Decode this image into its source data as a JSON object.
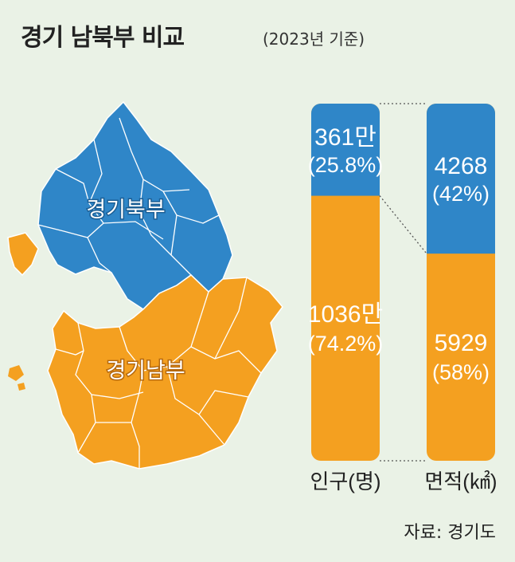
{
  "title": "경기 남북부 비교",
  "subtitle": "(2023년 기준)",
  "source": "자료: 경기도",
  "colors": {
    "north": "#2f86c8",
    "south": "#f4a020",
    "background": "#eaf2e6"
  },
  "map": {
    "north_label": "경기북부",
    "south_label": "경기남부"
  },
  "chart_data": {
    "type": "bar",
    "stacked": true,
    "categories": [
      "인구(명)",
      "면적(㎢)"
    ],
    "series": [
      {
        "name": "경기북부",
        "values": [
          361,
          4268
        ],
        "labels": [
          "361만",
          "4268"
        ],
        "shares": [
          "(25.8%)",
          "(42%)"
        ],
        "share_values": [
          25.8,
          42
        ]
      },
      {
        "name": "경기남부",
        "values": [
          1036,
          5929
        ],
        "labels": [
          "1036만",
          "5929"
        ],
        "shares": [
          "(74.2%)",
          "(58%)"
        ],
        "share_values": [
          74.2,
          58
        ]
      }
    ]
  }
}
